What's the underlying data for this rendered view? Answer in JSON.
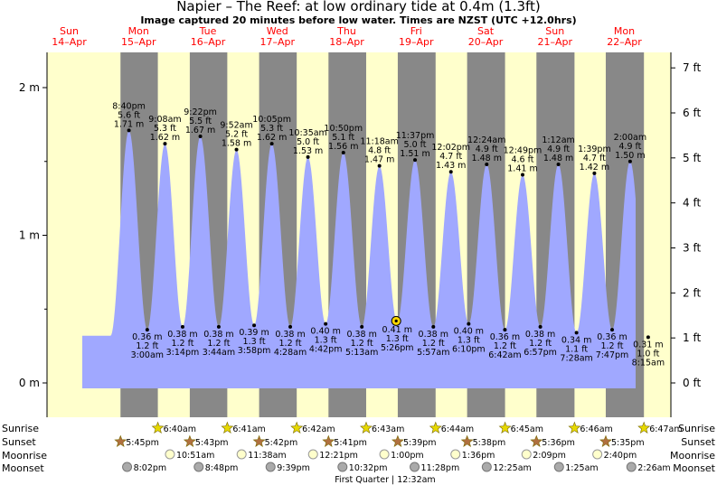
{
  "header": {
    "title": "Napier – The Reef: at low  ordinary tide at 0.4m (1.3ft)",
    "subtitle": "Image captured 20 minutes before low water. Times are NZST (UTC +12.0hrs)"
  },
  "colors": {
    "day": "#ffffcc",
    "night": "#888888",
    "tide_fill": "#a0a8ff",
    "day_label": "#ff0000"
  },
  "chart_data": {
    "type": "area",
    "title": "Napier – The Reef: at low  ordinary tide at 0.4m (1.3ft)",
    "ylabel_left": "m",
    "ylabel_right": "ft",
    "ylim_m": [
      -0.17,
      2.22
    ],
    "y_ticks_m": [
      "0 m",
      "1 m",
      "2 m"
    ],
    "y_ticks_ft": [
      "0 ft",
      "1 ft",
      "2 ft",
      "3 ft",
      "4 ft",
      "5 ft",
      "6 ft",
      "7 ft"
    ],
    "day_headers": [
      {
        "day": "Sun",
        "date": "14–Apr"
      },
      {
        "day": "Mon",
        "date": "15–Apr"
      },
      {
        "day": "Tue",
        "date": "16–Apr"
      },
      {
        "day": "Wed",
        "date": "17–Apr"
      },
      {
        "day": "Thu",
        "date": "18–Apr"
      },
      {
        "day": "Fri",
        "date": "19–Apr"
      },
      {
        "day": "Sat",
        "date": "20–Apr"
      },
      {
        "day": "Sun",
        "date": "21–Apr"
      },
      {
        "day": "Mon",
        "date": "22–Apr"
      }
    ],
    "tides": [
      {
        "day": 0,
        "time": "8:40 pm",
        "h": 1.71,
        "ft": "5.6 ft",
        "m": "1.71 m",
        "type": "high"
      },
      {
        "day": 1,
        "time": "3:00 am",
        "h": 0.36,
        "ft": "1.2 ft",
        "m": "0.36 m",
        "type": "low"
      },
      {
        "day": 1,
        "time": "9:08 am",
        "h": 1.62,
        "ft": "5.3 ft",
        "m": "1.62 m",
        "type": "high"
      },
      {
        "day": 1,
        "time": "3:14 pm",
        "h": 0.38,
        "ft": "1.2 ft",
        "m": "0.38 m",
        "type": "low"
      },
      {
        "day": 1,
        "time": "9:22 pm",
        "h": 1.67,
        "ft": "5.5 ft",
        "m": "1.67 m",
        "type": "high"
      },
      {
        "day": 2,
        "time": "3:44 am",
        "h": 0.38,
        "ft": "1.2 ft",
        "m": "0.38 m",
        "type": "low"
      },
      {
        "day": 2,
        "time": "9:52 am",
        "h": 1.58,
        "ft": "5.2 ft",
        "m": "1.58 m",
        "type": "high"
      },
      {
        "day": 2,
        "time": "3:58 pm",
        "h": 0.39,
        "ft": "1.3 ft",
        "m": "0.39 m",
        "type": "low"
      },
      {
        "day": 2,
        "time": "10:05 pm",
        "h": 1.62,
        "ft": "5.3 ft",
        "m": "1.62 m",
        "type": "high"
      },
      {
        "day": 3,
        "time": "4:28 am",
        "h": 0.38,
        "ft": "1.2 ft",
        "m": "0.38 m",
        "type": "low"
      },
      {
        "day": 3,
        "time": "10:35 am",
        "h": 1.53,
        "ft": "5.0 ft",
        "m": "1.53 m",
        "type": "high"
      },
      {
        "day": 3,
        "time": "4:42 pm",
        "h": 0.4,
        "ft": "1.3 ft",
        "m": "0.40 m",
        "type": "low"
      },
      {
        "day": 3,
        "time": "10:50 pm",
        "h": 1.56,
        "ft": "5.1 ft",
        "m": "1.56 m",
        "type": "high"
      },
      {
        "day": 4,
        "time": "5:13 am",
        "h": 0.38,
        "ft": "1.2 ft",
        "m": "0.38 m",
        "type": "low"
      },
      {
        "day": 4,
        "time": "11:18 am",
        "h": 1.47,
        "ft": "4.8 ft",
        "m": "1.47 m",
        "type": "high"
      },
      {
        "day": 4,
        "time": "5:26 pm",
        "h": 0.41,
        "ft": "1.3 ft",
        "m": "0.41 m",
        "type": "low"
      },
      {
        "day": 4,
        "time": "11:37 pm",
        "h": 1.51,
        "ft": "5.0 ft",
        "m": "1.51 m",
        "type": "high"
      },
      {
        "day": 5,
        "time": "5:57 am",
        "h": 0.38,
        "ft": "1.2 ft",
        "m": "0.38 m",
        "type": "low"
      },
      {
        "day": 5,
        "time": "12:02 pm",
        "h": 1.43,
        "ft": "4.7 ft",
        "m": "1.43 m",
        "type": "high"
      },
      {
        "day": 5,
        "time": "6:10 pm",
        "h": 0.4,
        "ft": "1.3 ft",
        "m": "0.40 m",
        "type": "low"
      },
      {
        "day": 6,
        "time": "12:24 am",
        "h": 1.48,
        "ft": "4.9 ft",
        "m": "1.48 m",
        "type": "high"
      },
      {
        "day": 6,
        "time": "6:42 am",
        "h": 0.36,
        "ft": "1.2 ft",
        "m": "0.36 m",
        "type": "low"
      },
      {
        "day": 6,
        "time": "12:49 pm",
        "h": 1.41,
        "ft": "4.6 ft",
        "m": "1.41 m",
        "type": "high"
      },
      {
        "day": 6,
        "time": "6:57 pm",
        "h": 0.38,
        "ft": "1.2 ft",
        "m": "0.38 m",
        "type": "low"
      },
      {
        "day": 7,
        "time": "1:12 am",
        "h": 1.48,
        "ft": "4.9 ft",
        "m": "1.48 m",
        "type": "high"
      },
      {
        "day": 7,
        "time": "7:28 am",
        "h": 0.34,
        "ft": "1.1 ft",
        "m": "0.34 m",
        "type": "low"
      },
      {
        "day": 7,
        "time": "1:39 pm",
        "h": 1.42,
        "ft": "4.7 ft",
        "m": "1.42 m",
        "type": "high"
      },
      {
        "day": 7,
        "time": "7:47 pm",
        "h": 0.36,
        "ft": "1.2 ft",
        "m": "0.36 m",
        "type": "low"
      },
      {
        "day": 8,
        "time": "2:00 am",
        "h": 1.5,
        "ft": "4.9 ft",
        "m": "1.50 m",
        "type": "high"
      },
      {
        "day": 8,
        "time": "8:15 am",
        "h": 0.31,
        "ft": "1.0 ft",
        "m": "0.31 m",
        "type": "low"
      }
    ],
    "current_marker": {
      "day": 4,
      "time": "5:06 pm",
      "h": 0.42
    },
    "sunrise": [
      "6:40am",
      "6:41am",
      "6:42am",
      "6:43am",
      "6:44am",
      "6:45am",
      "6:46am",
      "6:47am"
    ],
    "sunset": [
      "5:45pm",
      "5:43pm",
      "5:42pm",
      "5:41pm",
      "5:39pm",
      "5:38pm",
      "5:36pm",
      "5:35pm"
    ],
    "moonrise": [
      "10:51am",
      "11:38am",
      "12:21pm",
      "1:00pm",
      "1:36pm",
      "2:09pm",
      "2:40pm"
    ],
    "moonset": [
      "8:02pm",
      "8:48pm",
      "9:39pm",
      "10:32pm",
      "11:28pm",
      "12:25am",
      "1:25am",
      "2:26am"
    ],
    "moon_phase_label": "First Quarter | 12:32am",
    "row_labels": {
      "sunrise": "Sunrise",
      "sunset": "Sunset",
      "moonrise": "Moonrise",
      "moonset": "Moonset"
    }
  }
}
